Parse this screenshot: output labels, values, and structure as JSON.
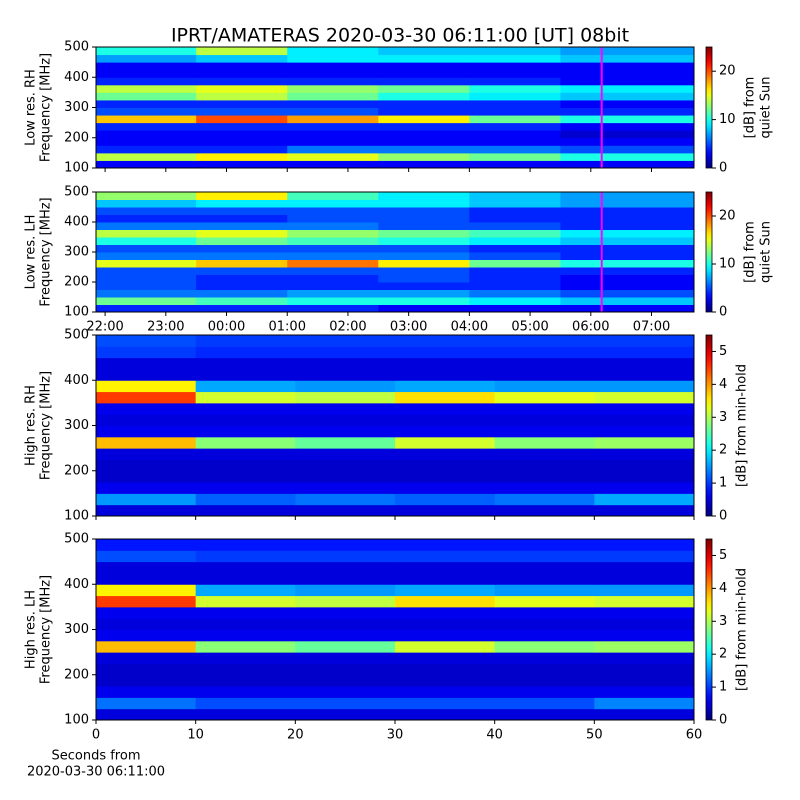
{
  "title": "IPRT/AMATERAS 2020-03-30 06:11:00 [UT]   08bit",
  "chart_data": [
    {
      "type": "heatmap",
      "ylabel": [
        "Low res. RH",
        "Frequency [MHz]"
      ],
      "colormap": "jet",
      "x": [
        21.85,
        23.5,
        25,
        26.5,
        28,
        29.5,
        31.7
      ],
      "xlim": [
        21.85,
        31.7
      ],
      "xticks": [
        {
          "value": 22,
          "label": "22:00"
        },
        {
          "value": 23,
          "label": "23:00"
        },
        {
          "value": 24,
          "label": "00:00"
        },
        {
          "value": 25,
          "label": "01:00"
        },
        {
          "value": 26,
          "label": "02:00"
        },
        {
          "value": 27,
          "label": "03:00"
        },
        {
          "value": 28,
          "label": "04:00"
        },
        {
          "value": 29,
          "label": "05:00"
        },
        {
          "value": 30,
          "label": "06:00"
        },
        {
          "value": 31,
          "label": "07:00"
        }
      ],
      "show_xticklabels": false,
      "vline": 30.18,
      "vline_color": "#ff00ff",
      "y": [
        100,
        125,
        150,
        175,
        200,
        225,
        250,
        275,
        300,
        325,
        350,
        375,
        400,
        425,
        450,
        475,
        500
      ],
      "ylim": [
        100,
        500
      ],
      "yticks": [
        100,
        200,
        300,
        400,
        500
      ],
      "z": [
        [
          3,
          3,
          3,
          3,
          3,
          3
        ],
        [
          14,
          16,
          15,
          13,
          12,
          10
        ],
        [
          4,
          4,
          6,
          6,
          6,
          5
        ],
        [
          3,
          3,
          3,
          3,
          3,
          3
        ],
        [
          3,
          3,
          3,
          3,
          3,
          2
        ],
        [
          4,
          4,
          4,
          4,
          4,
          3
        ],
        [
          17,
          20,
          18,
          16,
          12,
          10
        ],
        [
          5,
          5,
          5,
          4,
          4,
          4
        ],
        [
          4,
          4,
          4,
          4,
          4,
          3
        ],
        [
          12,
          14,
          12,
          10,
          9,
          8
        ],
        [
          14,
          15,
          13,
          12,
          10,
          9
        ],
        [
          4,
          4,
          4,
          4,
          4,
          3
        ],
        [
          3,
          3,
          3,
          3,
          3,
          3
        ],
        [
          3,
          3,
          3,
          3,
          3,
          3
        ],
        [
          7,
          8,
          9,
          9,
          9,
          8
        ],
        [
          10,
          14,
          9,
          8,
          8,
          7
        ]
      ],
      "clim": [
        0,
        25
      ],
      "cticks": [
        0,
        10,
        20
      ],
      "clabel": [
        "[dB] from",
        "quiet Sun"
      ]
    },
    {
      "type": "heatmap",
      "ylabel": [
        "Low res. LH",
        "Frequency [MHz]"
      ],
      "colormap": "jet",
      "x": [
        21.85,
        23.5,
        25,
        26.5,
        28,
        29.5,
        31.7
      ],
      "xlim": [
        21.85,
        31.7
      ],
      "xticks": [
        {
          "value": 22,
          "label": "22:00"
        },
        {
          "value": 23,
          "label": "23:00"
        },
        {
          "value": 24,
          "label": "00:00"
        },
        {
          "value": 25,
          "label": "01:00"
        },
        {
          "value": 26,
          "label": "02:00"
        },
        {
          "value": 27,
          "label": "03:00"
        },
        {
          "value": 28,
          "label": "04:00"
        },
        {
          "value": 29,
          "label": "05:00"
        },
        {
          "value": 30,
          "label": "06:00"
        },
        {
          "value": 31,
          "label": "07:00"
        }
      ],
      "show_xticklabels": true,
      "vline": 30.18,
      "vline_color": "#ff00ff",
      "y": [
        100,
        125,
        150,
        175,
        200,
        225,
        250,
        275,
        300,
        325,
        350,
        375,
        400,
        425,
        450,
        475,
        500
      ],
      "ylim": [
        100,
        500
      ],
      "yticks": [
        100,
        200,
        300,
        400,
        500
      ],
      "z": [
        [
          4,
          4,
          4,
          3,
          3,
          3
        ],
        [
          12,
          11,
          10,
          10,
          9,
          8
        ],
        [
          6,
          6,
          7,
          7,
          6,
          5
        ],
        [
          5,
          4,
          4,
          4,
          4,
          3
        ],
        [
          5,
          4,
          4,
          5,
          4,
          3
        ],
        [
          5,
          5,
          5,
          5,
          4,
          4
        ],
        [
          15,
          17,
          19,
          16,
          12,
          10
        ],
        [
          6,
          6,
          6,
          6,
          5,
          4
        ],
        [
          5,
          5,
          5,
          5,
          4,
          4
        ],
        [
          10,
          12,
          11,
          10,
          9,
          8
        ],
        [
          14,
          15,
          13,
          12,
          11,
          9
        ],
        [
          6,
          6,
          6,
          5,
          5,
          4
        ],
        [
          4,
          4,
          5,
          5,
          4,
          4
        ],
        [
          5,
          5,
          5,
          5,
          4,
          4
        ],
        [
          8,
          9,
          9,
          9,
          8,
          7
        ],
        [
          13,
          16,
          11,
          9,
          8,
          7
        ]
      ],
      "clim": [
        0,
        25
      ],
      "cticks": [
        0,
        10,
        20
      ],
      "clabel": [
        "[dB] from",
        "quiet Sun"
      ]
    },
    {
      "type": "heatmap",
      "ylabel": [
        "High res. RH",
        "Frequency [MHz]"
      ],
      "colormap": "jet",
      "x": [
        0,
        10,
        20,
        30,
        40,
        50,
        60
      ],
      "xlim": [
        0,
        60
      ],
      "xticks": [
        0,
        10,
        20,
        30,
        40,
        50,
        60
      ],
      "show_xticklabels": false,
      "y": [
        100,
        125,
        150,
        175,
        200,
        225,
        250,
        275,
        300,
        325,
        350,
        375,
        400,
        425,
        450,
        475,
        500
      ],
      "ylim": [
        100,
        500
      ],
      "yticks": [
        100,
        200,
        300,
        400,
        500
      ],
      "z": [
        [
          0.5,
          0.5,
          0.5,
          0.5,
          0.5,
          0.5
        ],
        [
          1.5,
          1.2,
          1.3,
          1.2,
          1.3,
          1.6
        ],
        [
          0.6,
          0.6,
          0.6,
          0.6,
          0.6,
          0.6
        ],
        [
          0.4,
          0.4,
          0.4,
          0.4,
          0.4,
          0.4
        ],
        [
          0.4,
          0.4,
          0.4,
          0.4,
          0.4,
          0.4
        ],
        [
          0.5,
          0.5,
          0.5,
          0.5,
          0.5,
          0.5
        ],
        [
          3.8,
          2.8,
          2.6,
          3.2,
          2.8,
          2.9
        ],
        [
          0.6,
          0.6,
          0.6,
          0.6,
          0.6,
          0.6
        ],
        [
          0.5,
          0.5,
          0.5,
          0.5,
          0.5,
          0.5
        ],
        [
          0.6,
          0.6,
          0.6,
          0.6,
          0.6,
          0.6
        ],
        [
          4.5,
          3.2,
          3.1,
          3.6,
          3.3,
          3.2
        ],
        [
          3.5,
          1.6,
          1.5,
          1.6,
          1.5,
          1.5
        ],
        [
          0.5,
          0.5,
          0.5,
          0.5,
          0.5,
          0.5
        ],
        [
          0.5,
          0.5,
          0.5,
          0.5,
          0.5,
          0.5
        ],
        [
          1,
          0.9,
          0.9,
          0.9,
          0.9,
          0.9
        ],
        [
          1.1,
          1,
          1,
          1,
          1,
          1
        ]
      ],
      "clim": [
        0,
        5.5
      ],
      "cticks": [
        0,
        1,
        2,
        3,
        4,
        5
      ],
      "clabel": [
        "[dB] from min-hold"
      ]
    },
    {
      "type": "heatmap",
      "ylabel": [
        "High res. LH",
        "Frequency [MHz]"
      ],
      "colormap": "jet",
      "x": [
        0,
        10,
        20,
        30,
        40,
        50,
        60
      ],
      "xlim": [
        0,
        60
      ],
      "xticks": [
        0,
        10,
        20,
        30,
        40,
        50,
        60
      ],
      "show_xticklabels": true,
      "xlabel": [
        "Seconds from",
        "2020-03-30 06:11:00"
      ],
      "y": [
        100,
        125,
        150,
        175,
        200,
        225,
        250,
        275,
        300,
        325,
        350,
        375,
        400,
        425,
        450,
        475,
        500
      ],
      "ylim": [
        100,
        500
      ],
      "yticks": [
        100,
        200,
        300,
        400,
        500
      ],
      "z": [
        [
          0.5,
          0.5,
          0.5,
          0.5,
          0.5,
          0.5
        ],
        [
          1.3,
          1.1,
          1.1,
          1.1,
          1.1,
          1.4
        ],
        [
          0.6,
          0.6,
          0.6,
          0.6,
          0.6,
          0.6
        ],
        [
          0.4,
          0.4,
          0.4,
          0.4,
          0.4,
          0.4
        ],
        [
          0.4,
          0.4,
          0.4,
          0.4,
          0.4,
          0.4
        ],
        [
          0.5,
          0.5,
          0.5,
          0.5,
          0.5,
          0.5
        ],
        [
          3.8,
          2.8,
          2.6,
          3.2,
          2.8,
          2.9
        ],
        [
          0.6,
          0.6,
          0.6,
          0.6,
          0.6,
          0.6
        ],
        [
          0.5,
          0.5,
          0.5,
          0.5,
          0.5,
          0.5
        ],
        [
          0.6,
          0.6,
          0.6,
          0.6,
          0.6,
          0.6
        ],
        [
          4.5,
          3.2,
          3.1,
          3.6,
          3.3,
          3.2
        ],
        [
          3.5,
          1.6,
          1.5,
          1.6,
          1.5,
          1.5
        ],
        [
          0.5,
          0.5,
          0.5,
          0.5,
          0.5,
          0.5
        ],
        [
          0.5,
          0.5,
          0.5,
          0.5,
          0.5,
          0.5
        ],
        [
          1.1,
          1,
          1,
          1,
          1,
          1
        ],
        [
          0.8,
          0.8,
          0.8,
          0.8,
          0.8,
          0.8
        ]
      ],
      "clim": [
        0,
        5.5
      ],
      "cticks": [
        0,
        1,
        2,
        3,
        4,
        5
      ],
      "clabel": [
        "[dB] from min-hold"
      ]
    }
  ]
}
